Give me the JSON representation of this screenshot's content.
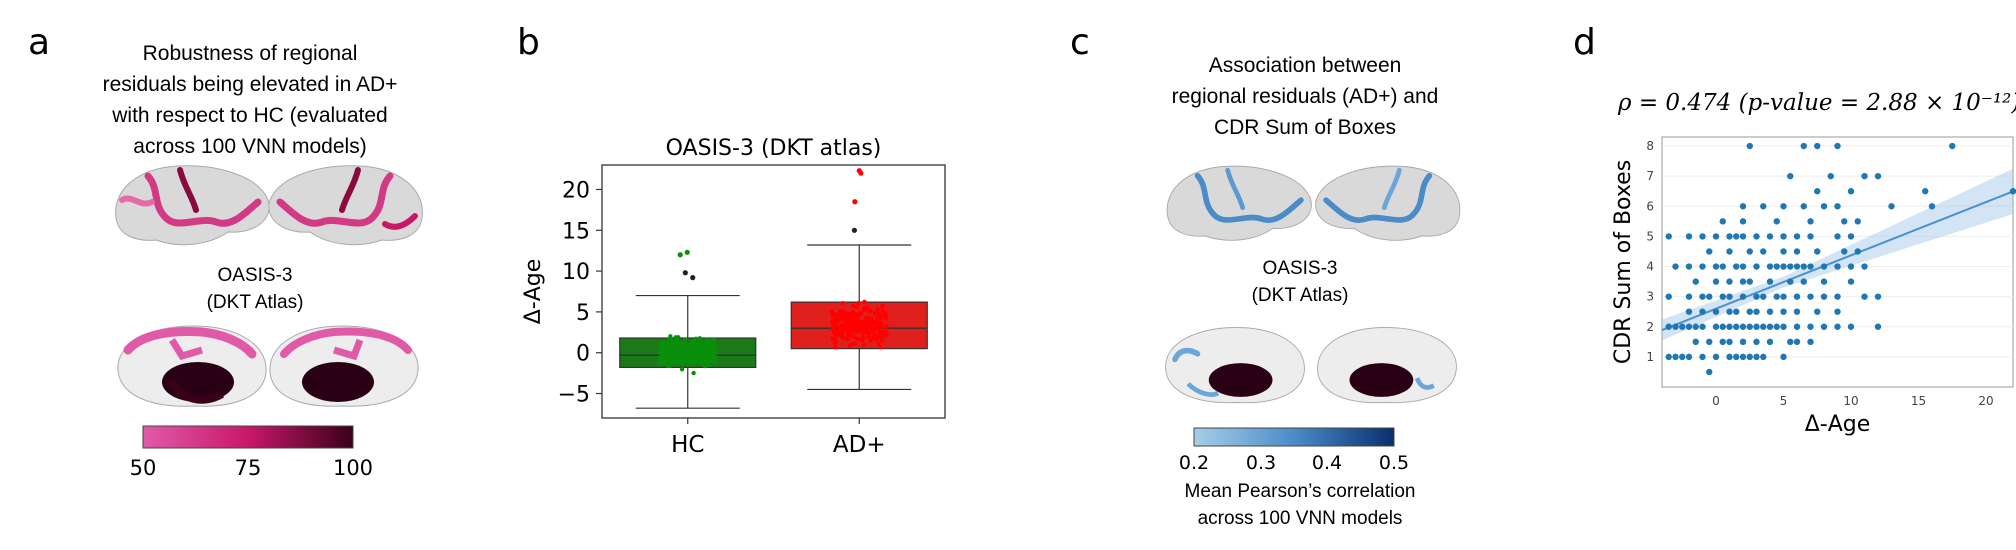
{
  "panels": {
    "a": {
      "label": "a",
      "title": "Robustness of regional\nresiduals being elevated in AD+\nwith respect to HC (evaluated\nacross 100 VNN models)",
      "dataset": "OASIS-3\n(DKT Atlas)",
      "colorbar": {
        "ticks": [
          "50",
          "75",
          "100"
        ],
        "colors": [
          "#e05aa8",
          "#c8186a",
          "#3a0018"
        ]
      }
    },
    "b": {
      "label": "b"
    },
    "c": {
      "label": "c",
      "title": "Association between\nregional residuals (AD+) and\nCDR Sum of Boxes",
      "dataset": "OASIS-3\n(DKT Atlas)",
      "colorbar": {
        "ticks": [
          "0.2",
          "0.3",
          "0.4",
          "0.5"
        ],
        "colors": [
          "#a8cde8",
          "#4a8cc8",
          "#0a2e6e"
        ]
      },
      "caption": "Mean Pearson’s correlation\nacross 100 VNN models"
    },
    "d": {
      "label": "d",
      "stat_line": "ρ = 0.474 (p-value = 2.88 × 10⁻¹²)"
    }
  },
  "chart_data": [
    {
      "type": "box",
      "title": "OASIS-3 (DKT atlas)",
      "ylabel": "Δ-Age",
      "categories": [
        "HC",
        "AD+"
      ],
      "ylim": [
        -8,
        23
      ],
      "yticks": [
        "-5",
        "0",
        "5",
        "10",
        "15",
        "20"
      ],
      "colors": {
        "HC": "#1a7a1a",
        "AD+": "#e0201c"
      },
      "point_colors": {
        "HC": "#0a8f0a",
        "AD+": "#ff0000"
      },
      "boxes": [
        {
          "name": "HC",
          "whisker_low": -6.8,
          "q1": -1.8,
          "median": -0.3,
          "q3": 1.8,
          "whisker_high": 7.0,
          "outliers": [
            9.2,
            9.8,
            12.0,
            12.3
          ]
        },
        {
          "name": "AD+",
          "whisker_low": -4.5,
          "q1": 0.5,
          "median": 3.0,
          "q3": 6.2,
          "whisker_high": 13.2,
          "outliers": [
            15.0,
            18.5,
            22.0,
            22.3
          ]
        }
      ]
    },
    {
      "type": "scatter",
      "xlabel": "Δ-Age",
      "ylabel": "CDR Sum of Boxes",
      "xlim": [
        -4,
        22
      ],
      "ylim": [
        0,
        8.3
      ],
      "xticks": [
        "0",
        "5",
        "10",
        "15",
        "20"
      ],
      "yticks": [
        "1",
        "2",
        "3",
        "4",
        "5",
        "6",
        "7",
        "8"
      ],
      "point_color": "#1f77b4",
      "fit": {
        "slope": 0.177,
        "intercept": 2.6
      },
      "points": [
        [
          -3.5,
          1
        ],
        [
          -3,
          1
        ],
        [
          -2.5,
          1
        ],
        [
          -2,
          1
        ],
        [
          -1,
          1
        ],
        [
          0,
          1
        ],
        [
          1,
          1
        ],
        [
          1.5,
          1
        ],
        [
          2,
          1
        ],
        [
          2.5,
          1
        ],
        [
          3,
          1
        ],
        [
          3.5,
          1
        ],
        [
          5,
          1
        ],
        [
          -1.5,
          1.5
        ],
        [
          -0.5,
          1.5
        ],
        [
          0.5,
          1.5
        ],
        [
          1,
          1.5
        ],
        [
          2,
          1.5
        ],
        [
          3,
          1.5
        ],
        [
          4,
          1.5
        ],
        [
          5.5,
          1.5
        ],
        [
          6,
          1.5
        ],
        [
          7,
          1.5
        ],
        [
          -3.5,
          2
        ],
        [
          -3,
          2
        ],
        [
          -2.5,
          2
        ],
        [
          -2,
          2
        ],
        [
          -1.5,
          2
        ],
        [
          -1,
          2
        ],
        [
          0,
          2
        ],
        [
          0.5,
          2
        ],
        [
          1,
          2
        ],
        [
          1.5,
          2
        ],
        [
          2,
          2
        ],
        [
          2.5,
          2
        ],
        [
          3,
          2
        ],
        [
          3.5,
          2
        ],
        [
          4,
          2
        ],
        [
          4.5,
          2
        ],
        [
          5,
          2
        ],
        [
          6,
          2
        ],
        [
          7,
          2
        ],
        [
          8,
          2
        ],
        [
          9,
          2
        ],
        [
          10,
          2
        ],
        [
          12,
          2
        ],
        [
          -2,
          2.5
        ],
        [
          -1,
          2.5
        ],
        [
          0,
          2.5
        ],
        [
          1,
          2.5
        ],
        [
          1.5,
          2.5
        ],
        [
          2.5,
          2.5
        ],
        [
          3,
          2.5
        ],
        [
          4,
          2.5
        ],
        [
          5,
          2.5
        ],
        [
          6,
          2.5
        ],
        [
          7.5,
          2.5
        ],
        [
          9,
          2.5
        ],
        [
          -3.5,
          3
        ],
        [
          -2,
          3
        ],
        [
          -1,
          3
        ],
        [
          -0.5,
          3
        ],
        [
          0.5,
          3
        ],
        [
          1,
          3
        ],
        [
          2,
          3
        ],
        [
          3,
          3
        ],
        [
          3.5,
          3
        ],
        [
          4.5,
          3
        ],
        [
          5,
          3
        ],
        [
          6,
          3
        ],
        [
          7,
          3
        ],
        [
          8,
          3
        ],
        [
          9,
          3
        ],
        [
          11,
          3
        ],
        [
          12,
          3
        ],
        [
          -1.5,
          3.5
        ],
        [
          0,
          3.5
        ],
        [
          1,
          3.5
        ],
        [
          2,
          3.5
        ],
        [
          2.5,
          3.5
        ],
        [
          4,
          3.5
        ],
        [
          5.5,
          3.5
        ],
        [
          6.5,
          3.5
        ],
        [
          8,
          3.5
        ],
        [
          10,
          3.5
        ],
        [
          -3,
          4
        ],
        [
          -2,
          4
        ],
        [
          -1,
          4
        ],
        [
          0,
          4
        ],
        [
          0.5,
          4
        ],
        [
          1.5,
          4
        ],
        [
          2,
          4
        ],
        [
          3,
          4
        ],
        [
          4,
          4
        ],
        [
          4.5,
          4
        ],
        [
          5,
          4
        ],
        [
          5.5,
          4
        ],
        [
          6,
          4
        ],
        [
          6.5,
          4
        ],
        [
          7,
          4
        ],
        [
          8,
          4
        ],
        [
          9,
          4
        ],
        [
          10,
          4
        ],
        [
          11,
          4
        ],
        [
          -0.5,
          4.5
        ],
        [
          1,
          4.5
        ],
        [
          2.5,
          4.5
        ],
        [
          3.5,
          4.5
        ],
        [
          5,
          4.5
        ],
        [
          6,
          4.5
        ],
        [
          7.5,
          4.5
        ],
        [
          9.5,
          4.5
        ],
        [
          10.5,
          4.5
        ],
        [
          -3.5,
          5
        ],
        [
          -2,
          5
        ],
        [
          -1,
          5
        ],
        [
          0,
          5
        ],
        [
          1,
          5
        ],
        [
          1.5,
          5
        ],
        [
          2,
          5
        ],
        [
          3,
          5
        ],
        [
          4,
          5
        ],
        [
          5,
          5
        ],
        [
          6,
          5
        ],
        [
          7,
          5
        ],
        [
          9,
          5
        ],
        [
          10,
          5
        ],
        [
          0.5,
          5.5
        ],
        [
          2,
          5.5
        ],
        [
          4.5,
          5.5
        ],
        [
          7,
          5.5
        ],
        [
          9.5,
          5.5
        ],
        [
          10.5,
          5.5
        ],
        [
          2,
          6
        ],
        [
          3.5,
          6
        ],
        [
          5,
          6
        ],
        [
          6.5,
          6
        ],
        [
          8,
          6
        ],
        [
          9,
          6
        ],
        [
          13,
          6
        ],
        [
          16,
          6
        ],
        [
          7.5,
          6.5
        ],
        [
          10,
          6.5
        ],
        [
          15.5,
          6.5
        ],
        [
          22,
          6.5
        ],
        [
          5.5,
          7
        ],
        [
          8.5,
          7
        ],
        [
          11,
          7
        ],
        [
          12,
          7
        ],
        [
          2.5,
          8
        ],
        [
          6.5,
          8
        ],
        [
          7.5,
          8
        ],
        [
          9,
          8
        ],
        [
          17.5,
          8
        ],
        [
          -0.5,
          0.5
        ]
      ]
    }
  ]
}
